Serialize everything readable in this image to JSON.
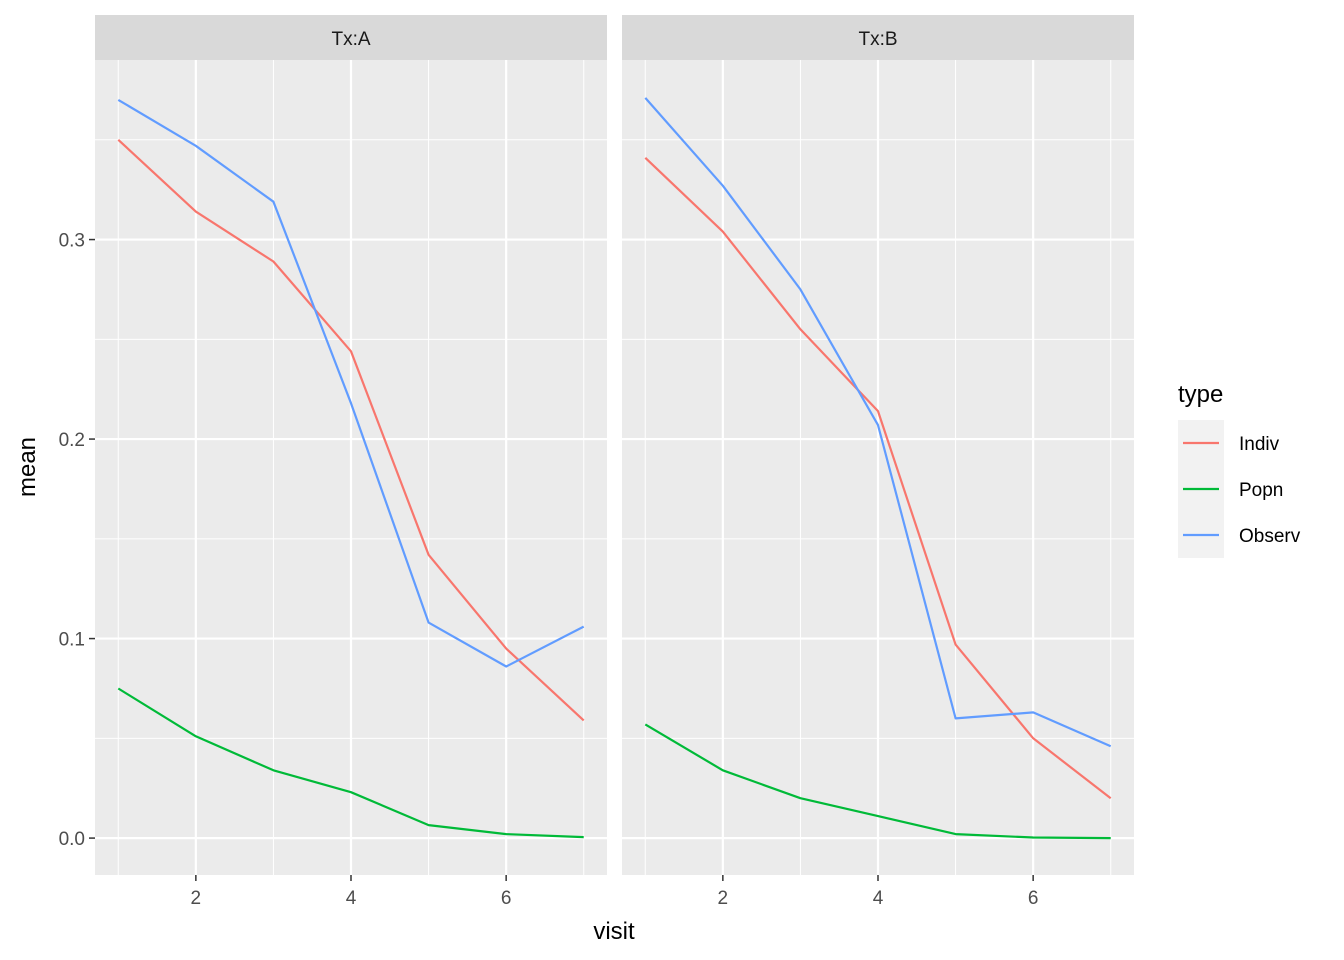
{
  "chart_data": {
    "type": "line",
    "xlabel": "visit",
    "ylabel": "mean",
    "xlim": [
      0.7,
      7.3
    ],
    "ylim": [
      -0.0185,
      0.39
    ],
    "x_ticks": [
      2,
      4,
      6
    ],
    "x_tick_labels": [
      "2",
      "4",
      "6"
    ],
    "y_ticks": [
      0.0,
      0.1,
      0.2,
      0.3
    ],
    "y_tick_labels": [
      "0.0",
      "0.1",
      "0.2",
      "0.3"
    ],
    "x_minor": [
      1,
      3,
      5,
      7
    ],
    "y_minor": [
      0.05,
      0.15,
      0.25,
      0.35
    ],
    "grid": true,
    "legend": {
      "title": "type",
      "position": "right",
      "entries": [
        "Indiv",
        "Popn",
        "Observ"
      ]
    },
    "series_colors": {
      "Indiv": "#F8766D",
      "Popn": "#00BA38",
      "Observ": "#619CFF"
    },
    "panels": [
      {
        "label": "Tx:A",
        "x": [
          1,
          2,
          3,
          4,
          5,
          6,
          7
        ],
        "series": [
          {
            "name": "Indiv",
            "values": [
              0.35,
              0.314,
              0.289,
              0.244,
              0.142,
              0.095,
              0.059
            ]
          },
          {
            "name": "Popn",
            "values": [
              0.075,
              0.051,
              0.034,
              0.023,
              0.0065,
              0.002,
              0.0005
            ]
          },
          {
            "name": "Observ",
            "values": [
              0.37,
              0.347,
              0.319,
              0.218,
              0.108,
              0.086,
              0.106
            ]
          }
        ]
      },
      {
        "label": "Tx:B",
        "x": [
          1,
          2,
          3,
          4,
          5,
          6,
          7
        ],
        "series": [
          {
            "name": "Indiv",
            "values": [
              0.341,
              0.304,
              0.255,
              0.214,
              0.097,
              0.05,
              0.02
            ]
          },
          {
            "name": "Popn",
            "values": [
              0.057,
              0.034,
              0.02,
              0.011,
              0.002,
              0.0003,
              0.0
            ]
          },
          {
            "name": "Observ",
            "values": [
              0.371,
              0.327,
              0.275,
              0.207,
              0.06,
              0.063,
              0.046
            ]
          }
        ]
      }
    ]
  }
}
